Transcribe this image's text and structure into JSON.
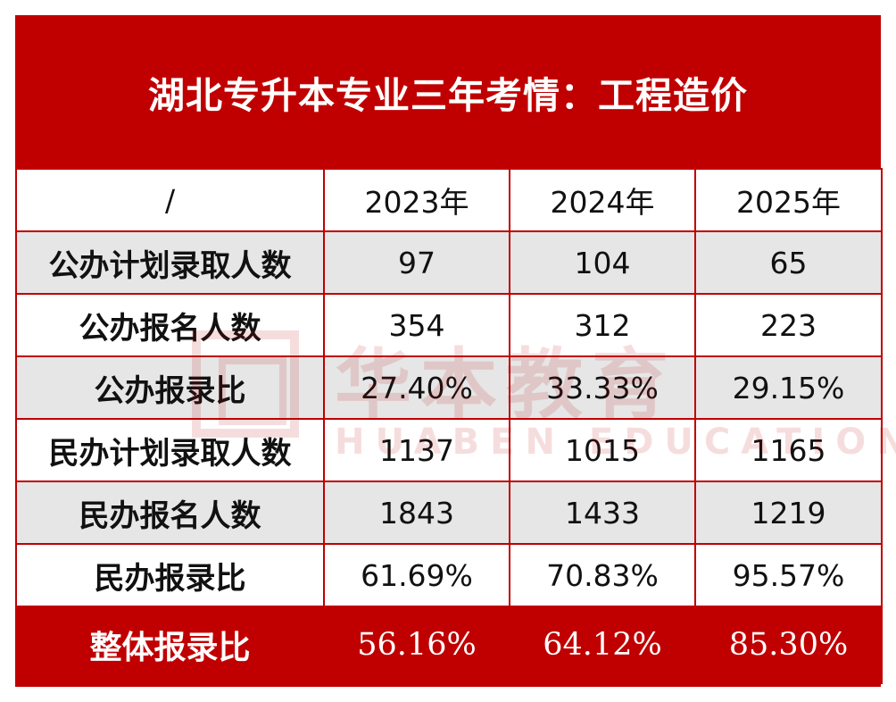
{
  "title": "湖北专升本专业三年考情：工程造价",
  "watermark": {
    "cn": "华本教育",
    "en": "HUABEN EDUCATION"
  },
  "table": {
    "header": [
      "/",
      "2023年",
      "2024年",
      "2025年"
    ],
    "rows": [
      {
        "label": "公办计划录取人数",
        "values": [
          "97",
          "104",
          "65"
        ]
      },
      {
        "label": "公办报名人数",
        "values": [
          "354",
          "312",
          "223"
        ]
      },
      {
        "label": "公办报录比",
        "values": [
          "27.40%",
          "33.33%",
          "29.15%"
        ]
      },
      {
        "label": "民办计划录取人数",
        "values": [
          "1137",
          "1015",
          "1165"
        ]
      },
      {
        "label": "民办报名人数",
        "values": [
          "1843",
          "1433",
          "1219"
        ]
      },
      {
        "label": "民办报录比",
        "values": [
          "61.69%",
          "70.83%",
          "95.57%"
        ]
      }
    ],
    "total": {
      "label": "整体报录比",
      "values": [
        "56.16%",
        "64.12%",
        "85.30%"
      ]
    }
  },
  "colors": {
    "accent": "#c00000",
    "stripe": "#e6e6e6",
    "text": "#111111"
  }
}
